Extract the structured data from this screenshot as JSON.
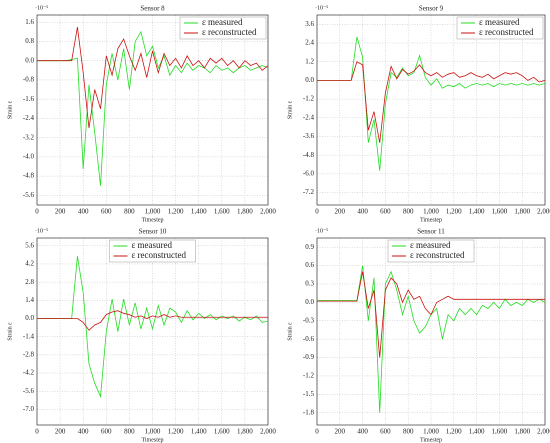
{
  "chart_data": [
    {
      "type": "line",
      "title": "Sensor 8",
      "xlabel": "Timestep",
      "ylabel": "Strain ε",
      "y_multiplier": "·10⁻⁵",
      "legend": "upper right",
      "grid": true,
      "x": [
        0,
        50,
        100,
        150,
        200,
        250,
        300,
        350,
        400,
        450,
        500,
        550,
        600,
        650,
        700,
        750,
        800,
        850,
        900,
        950,
        1000,
        1050,
        1100,
        1150,
        1200,
        1250,
        1300,
        1350,
        1400,
        1450,
        1500,
        1550,
        1600,
        1650,
        1700,
        1750,
        1800,
        1850,
        1900,
        1950,
        2000
      ],
      "xlim": [
        0,
        2000
      ],
      "xticks": [
        0,
        200,
        400,
        600,
        800,
        {
          "value": 1000,
          "label": "1,000"
        },
        {
          "value": 1200,
          "label": "1,200"
        },
        {
          "value": 1400,
          "label": "1,400"
        },
        {
          "value": 1600,
          "label": "1,600"
        },
        {
          "value": 1800,
          "label": "1,800"
        },
        {
          "value": 2000,
          "label": "2,000"
        }
      ],
      "ylim": [
        -6.0,
        1.9
      ],
      "yticks": [
        1.6,
        0.8,
        {
          "value": 0,
          "label": "0.0"
        },
        -0.8,
        -1.6,
        -2.4,
        -3.2,
        {
          "value": -4,
          "label": "-4.0"
        },
        -4.8,
        -5.6
      ],
      "series": [
        {
          "name": "ε measured",
          "color": "#22dd22",
          "values": [
            0,
            0,
            0,
            0,
            0,
            0,
            0.05,
            0.1,
            -4.5,
            -1.0,
            -3.0,
            -5.2,
            -1.0,
            0.3,
            -0.8,
            0.5,
            -1.2,
            0.8,
            1.2,
            0.2,
            0.6,
            -0.3,
            0.2,
            -0.6,
            -0.2,
            -0.5,
            -0.1,
            -0.4,
            -0.2,
            -0.3,
            -0.5,
            -0.2,
            -0.4,
            -0.3,
            -0.5,
            -0.3,
            -0.2,
            -0.4,
            -0.3,
            -0.2,
            -0.3
          ]
        },
        {
          "name": "ε reconstructed",
          "color": "#cc1111",
          "values": [
            0,
            0,
            0,
            0,
            0,
            0,
            0,
            1.4,
            -0.5,
            -2.8,
            -1.2,
            -2.0,
            0.2,
            -0.6,
            0.5,
            0.9,
            0.2,
            -0.4,
            0.3,
            -0.7,
            0.4,
            -0.5,
            0.3,
            -0.2,
            0.1,
            -0.3,
            0.2,
            -0.2,
            0.0,
            -0.3,
            0.1,
            -0.1,
            0.1,
            -0.2,
            0.0,
            -0.3,
            0.0,
            -0.2,
            -0.1,
            -0.4,
            -0.2
          ]
        }
      ]
    },
    {
      "type": "line",
      "title": "Sensor 9",
      "xlabel": "Timestep",
      "ylabel": "Strain ε",
      "y_multiplier": "·10⁻⁵",
      "legend": "upper right",
      "grid": true,
      "x": [
        0,
        50,
        100,
        150,
        200,
        250,
        300,
        350,
        400,
        450,
        500,
        550,
        600,
        650,
        700,
        750,
        800,
        850,
        900,
        950,
        1000,
        1050,
        1100,
        1150,
        1200,
        1250,
        1300,
        1350,
        1400,
        1450,
        1500,
        1550,
        1600,
        1650,
        1700,
        1750,
        1800,
        1850,
        1900,
        1950,
        2000
      ],
      "xlim": [
        0,
        2000
      ],
      "xticks": [
        0,
        200,
        400,
        600,
        800,
        {
          "value": 1000,
          "label": "1,000"
        },
        {
          "value": 1200,
          "label": "1,200"
        },
        {
          "value": 1400,
          "label": "1,400"
        },
        {
          "value": 1600,
          "label": "1,600"
        },
        {
          "value": 1800,
          "label": "1,800"
        },
        {
          "value": 2000,
          "label": "2,000"
        }
      ],
      "ylim": [
        -8.0,
        4.2
      ],
      "yticks": [
        3.6,
        2.4,
        1.2,
        {
          "value": 0,
          "label": "0.0"
        },
        -1.2,
        -2.4,
        -3.6,
        -4.8,
        {
          "value": -6,
          "label": "-6.0"
        },
        -7.2
      ],
      "series": [
        {
          "name": "ε measured",
          "color": "#22dd22",
          "values": [
            0,
            0,
            0,
            0,
            0,
            0,
            0,
            2.8,
            1.5,
            -4.0,
            -2.5,
            -5.8,
            -1.5,
            0.5,
            0.2,
            0.8,
            0.3,
            0.5,
            1.6,
            0.2,
            -0.3,
            0.1,
            -0.5,
            -0.3,
            -0.4,
            -0.2,
            -0.5,
            -0.3,
            -0.2,
            -0.3,
            -0.2,
            -0.4,
            -0.2,
            -0.3,
            -0.2,
            -0.3,
            -0.2,
            -0.3,
            -0.2,
            -0.3,
            -0.2
          ]
        },
        {
          "name": "ε reconstructed",
          "color": "#cc1111",
          "values": [
            0,
            0,
            0,
            0,
            0,
            0,
            0,
            1.2,
            1.0,
            -3.2,
            -2.0,
            -4.0,
            -0.8,
            0.9,
            0.1,
            0.7,
            0.4,
            0.6,
            1.0,
            0.5,
            0.3,
            0.5,
            0.2,
            0.4,
            0.5,
            0.2,
            0.3,
            0.5,
            0.3,
            0.2,
            0.4,
            0.1,
            0.3,
            0.5,
            0.4,
            0.5,
            0.3,
            0.0,
            0.2,
            -0.1,
            0.0
          ]
        }
      ]
    },
    {
      "type": "line",
      "title": "Sensor 10",
      "xlabel": "Timestep",
      "ylabel": "Strain ε",
      "y_multiplier": "·10⁻⁵",
      "legend": "upper center",
      "grid": true,
      "x": [
        0,
        50,
        100,
        150,
        200,
        250,
        300,
        350,
        400,
        450,
        500,
        550,
        600,
        650,
        700,
        750,
        800,
        850,
        900,
        950,
        1000,
        1050,
        1100,
        1150,
        1200,
        1250,
        1300,
        1350,
        1400,
        1450,
        1500,
        1550,
        1600,
        1650,
        1700,
        1750,
        1800,
        1850,
        1900,
        1950,
        2000
      ],
      "xlim": [
        0,
        2000
      ],
      "xticks": [
        0,
        200,
        400,
        600,
        800,
        {
          "value": 1000,
          "label": "1,000"
        },
        {
          "value": 1200,
          "label": "1,200"
        },
        {
          "value": 1400,
          "label": "1,400"
        },
        {
          "value": 1600,
          "label": "1,600"
        },
        {
          "value": 1800,
          "label": "1,800"
        },
        {
          "value": 2000,
          "label": "2,000"
        }
      ],
      "ylim": [
        -8.2,
        6.2
      ],
      "yticks": [
        5.6,
        4.2,
        2.8,
        1.4,
        {
          "value": 0,
          "label": "0.0"
        },
        -1.4,
        -2.8,
        -4.2,
        -5.6,
        {
          "value": -7,
          "label": "-7.0"
        }
      ],
      "series": [
        {
          "name": "ε measured",
          "color": "#22dd22",
          "values": [
            0,
            0,
            0,
            0,
            0,
            0,
            0,
            4.8,
            2.0,
            -3.5,
            -5.0,
            -6.0,
            -1.0,
            1.5,
            -1.0,
            1.5,
            -0.5,
            1.2,
            -0.8,
            0.8,
            -0.8,
            1.0,
            -0.5,
            0.8,
            0.5,
            -0.3,
            0.6,
            -0.1,
            0.4,
            0.0,
            0.3,
            -0.1,
            0.2,
            0.0,
            0.2,
            -0.2,
            0.1,
            -0.1,
            0.2,
            -0.3,
            -0.2
          ]
        },
        {
          "name": "ε reconstructed",
          "color": "#cc1111",
          "values": [
            0,
            0,
            0,
            0,
            0,
            0,
            0,
            0,
            -0.3,
            -0.9,
            -0.5,
            -0.3,
            0.3,
            0.5,
            0.6,
            0.4,
            0.3,
            0.1,
            0.2,
            0.0,
            0.2,
            0.1,
            0.3,
            0.1,
            0.2,
            0.1,
            0.1,
            0.1,
            0.1,
            0.1,
            0.1,
            0.1,
            0.1,
            0.1,
            0.1,
            0.1,
            0.1,
            0.1,
            0.1,
            0.1,
            0.1
          ]
        }
      ]
    },
    {
      "type": "line",
      "title": "Sensor 11",
      "xlabel": "Timestep",
      "ylabel": "Strain ε",
      "y_multiplier": "·10⁻⁵",
      "legend": "upper center",
      "grid": true,
      "x": [
        0,
        50,
        100,
        150,
        200,
        250,
        300,
        350,
        400,
        450,
        500,
        550,
        600,
        650,
        700,
        750,
        800,
        850,
        900,
        950,
        1000,
        1050,
        1100,
        1150,
        1200,
        1250,
        1300,
        1350,
        1400,
        1450,
        1500,
        1550,
        1600,
        1650,
        1700,
        1750,
        1800,
        1850,
        1900,
        1950,
        2000
      ],
      "xlim": [
        0,
        2000
      ],
      "xticks": [
        0,
        200,
        400,
        600,
        800,
        {
          "value": 1000,
          "label": "1,000"
        },
        {
          "value": 1200,
          "label": "1,200"
        },
        {
          "value": 1400,
          "label": "1,400"
        },
        {
          "value": 1600,
          "label": "1,600"
        },
        {
          "value": 1800,
          "label": "1,800"
        },
        {
          "value": 2000,
          "label": "2,000"
        }
      ],
      "ylim": [
        -2.0,
        1.05
      ],
      "yticks": [
        0.9,
        0.6,
        0.3,
        {
          "value": 0,
          "label": "0.0"
        },
        -0.3,
        -0.6,
        -0.9,
        -1.2,
        -1.5,
        -1.8
      ],
      "series": [
        {
          "name": "ε measured",
          "color": "#22dd22",
          "values": [
            0.03,
            0.03,
            0.03,
            0.03,
            0.03,
            0.03,
            0.03,
            0.03,
            0.6,
            -0.3,
            0.4,
            -1.8,
            0.3,
            0.5,
            0.2,
            -0.2,
            0.1,
            -0.3,
            -0.5,
            -0.4,
            -0.2,
            -0.1,
            -0.6,
            -0.2,
            -0.3,
            -0.1,
            -0.2,
            -0.1,
            -0.2,
            -0.05,
            -0.1,
            0.0,
            -0.1,
            0.05,
            -0.05,
            0.0,
            -0.05,
            0.05,
            0.0,
            0.05,
            0.0
          ]
        },
        {
          "name": "ε reconstructed",
          "color": "#cc1111",
          "values": [
            0.02,
            0.02,
            0.02,
            0.02,
            0.02,
            0.02,
            0.02,
            0.02,
            0.5,
            -0.1,
            0.2,
            -0.9,
            0.2,
            0.4,
            0.3,
            0.0,
            0.2,
            0.05,
            0.1,
            -0.1,
            -0.2,
            0.0,
            0.05,
            0.1,
            0.05,
            0.05,
            0.05,
            0.05,
            0.05,
            0.05,
            0.05,
            0.05,
            0.05,
            0.05,
            0.05,
            0.05,
            0.05,
            0.05,
            0.05,
            0.05,
            0.05
          ]
        }
      ]
    }
  ]
}
